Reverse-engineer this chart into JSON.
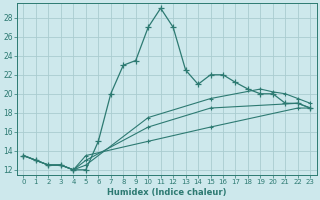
{
  "xlabel": "Humidex (Indice chaleur)",
  "ylabel": "",
  "bg_color": "#cde8ec",
  "grid_color": "#aaccd0",
  "line_color": "#2d7a72",
  "marker": "+",
  "xlim": [
    -0.5,
    23.5
  ],
  "ylim": [
    11.5,
    29.5
  ],
  "yticks": [
    12,
    14,
    16,
    18,
    20,
    22,
    24,
    26,
    28
  ],
  "xticks": [
    0,
    1,
    2,
    3,
    4,
    5,
    6,
    7,
    8,
    9,
    10,
    11,
    12,
    13,
    14,
    15,
    16,
    17,
    18,
    19,
    20,
    21,
    22,
    23
  ],
  "main_line_x": [
    0,
    1,
    2,
    3,
    4,
    5,
    6,
    7,
    8,
    9,
    10,
    11,
    12,
    13,
    14,
    15,
    16,
    17,
    18,
    19,
    20,
    21,
    22,
    23
  ],
  "main_line_y": [
    13.5,
    13.0,
    12.5,
    12.5,
    12.0,
    12.0,
    15.0,
    20.0,
    23.0,
    23.5,
    27.0,
    29.0,
    27.0,
    22.5,
    21.0,
    22.0,
    22.0,
    21.2,
    20.5,
    20.0,
    20.0,
    19.0,
    19.0,
    18.5
  ],
  "line2_x": [
    0,
    1,
    2,
    3,
    4,
    5,
    10,
    15,
    19,
    20,
    21,
    22,
    23
  ],
  "line2_y": [
    13.5,
    13.0,
    12.5,
    12.5,
    12.0,
    12.5,
    17.5,
    19.5,
    20.5,
    20.2,
    20.0,
    19.5,
    19.0
  ],
  "line3_x": [
    0,
    1,
    2,
    3,
    4,
    5,
    10,
    15,
    22,
    23
  ],
  "line3_y": [
    13.5,
    13.0,
    12.5,
    12.5,
    12.0,
    13.0,
    16.5,
    18.5,
    19.0,
    18.5
  ],
  "line4_x": [
    0,
    1,
    2,
    3,
    4,
    5,
    10,
    15,
    22,
    23
  ],
  "line4_y": [
    13.5,
    13.0,
    12.5,
    12.5,
    12.0,
    13.5,
    15.0,
    16.5,
    18.5,
    18.5
  ]
}
